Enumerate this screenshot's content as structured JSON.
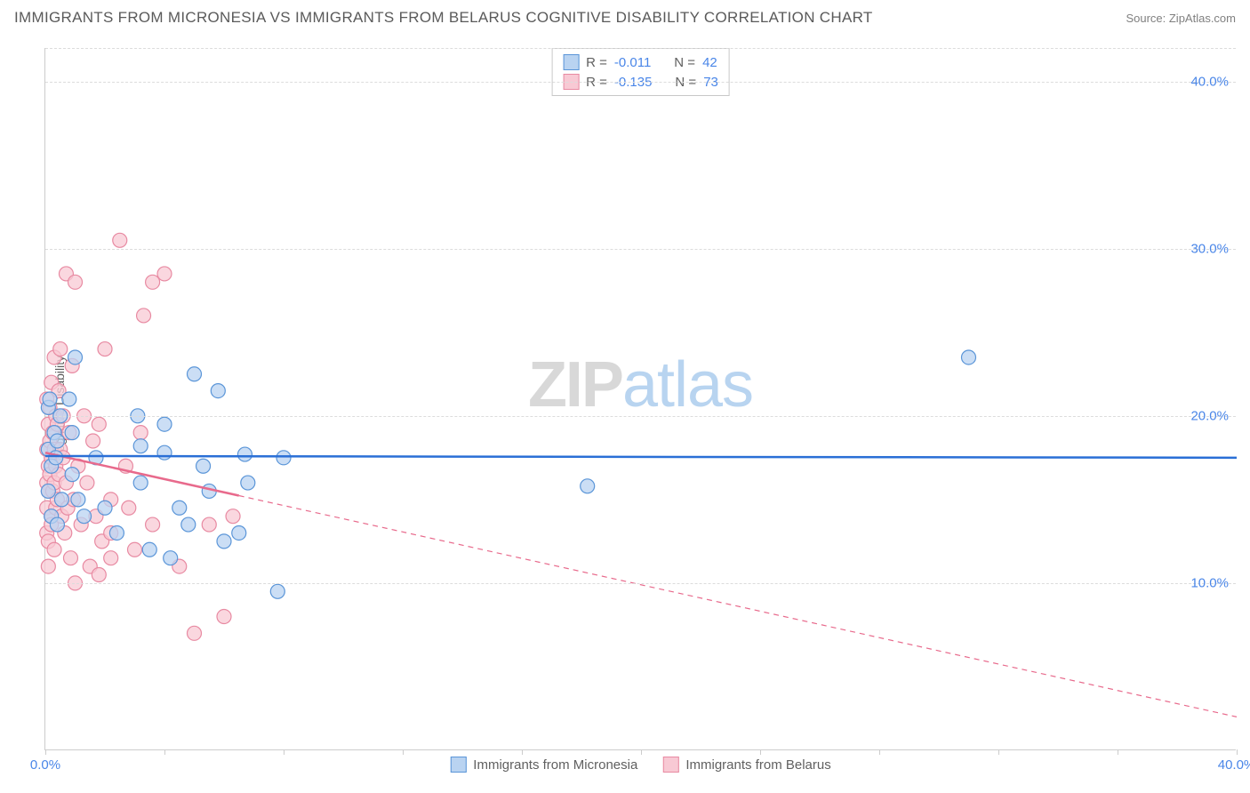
{
  "header": {
    "title": "IMMIGRANTS FROM MICRONESIA VS IMMIGRANTS FROM BELARUS COGNITIVE DISABILITY CORRELATION CHART",
    "source_prefix": "Source: ",
    "source": "ZipAtlas.com"
  },
  "chart": {
    "type": "scatter",
    "y_axis_label": "Cognitive Disability",
    "watermark_zip": "ZIP",
    "watermark_atlas": "atlas",
    "xlim": [
      0,
      40
    ],
    "ylim": [
      0,
      42
    ],
    "x_ticks_minor": [
      0,
      4,
      8,
      12,
      16,
      20,
      24,
      28,
      32,
      36,
      40
    ],
    "x_tick_labels": [
      {
        "v": 0,
        "label": "0.0%"
      },
      {
        "v": 40,
        "label": "40.0%"
      }
    ],
    "y_gridlines": [
      10,
      20,
      30,
      40,
      42
    ],
    "y_tick_labels": [
      {
        "v": 10,
        "label": "10.0%"
      },
      {
        "v": 20,
        "label": "20.0%"
      },
      {
        "v": 30,
        "label": "30.0%"
      },
      {
        "v": 40,
        "label": "40.0%"
      }
    ],
    "colors": {
      "series_a_fill": "#b9d3f1",
      "series_a_stroke": "#5a95d8",
      "series_b_fill": "#f8c9d4",
      "series_b_stroke": "#e88aa2",
      "trend_a": "#2a6fd6",
      "trend_b": "#e86a8c",
      "grid": "#dcdcdc",
      "axis": "#cccccc",
      "tick_text": "#4a86e8",
      "label_text": "#606060",
      "title_text": "#5a5a5a"
    },
    "marker_radius": 8,
    "marker_opacity": 0.75,
    "series_a": {
      "name": "Immigrants from Micronesia",
      "R": "-0.011",
      "N": "42",
      "trend": {
        "x1": 0,
        "y1": 17.6,
        "x2": 40,
        "y2": 17.5,
        "solid_until_x": 40
      },
      "points": [
        [
          0.1,
          20.5
        ],
        [
          0.1,
          18.0
        ],
        [
          0.1,
          15.5
        ],
        [
          0.15,
          21.0
        ],
        [
          0.2,
          17.0
        ],
        [
          0.2,
          14.0
        ],
        [
          0.3,
          19.0
        ],
        [
          0.35,
          17.5
        ],
        [
          0.4,
          18.5
        ],
        [
          0.4,
          13.5
        ],
        [
          0.5,
          20.0
        ],
        [
          0.55,
          15.0
        ],
        [
          0.8,
          21.0
        ],
        [
          0.9,
          19.0
        ],
        [
          0.9,
          16.5
        ],
        [
          1.0,
          23.5
        ],
        [
          1.1,
          15.0
        ],
        [
          1.3,
          14.0
        ],
        [
          1.7,
          17.5
        ],
        [
          2.0,
          14.5
        ],
        [
          2.4,
          13.0
        ],
        [
          3.1,
          20.0
        ],
        [
          3.2,
          18.2
        ],
        [
          3.2,
          16.0
        ],
        [
          3.5,
          12.0
        ],
        [
          4.0,
          19.5
        ],
        [
          4.0,
          17.8
        ],
        [
          4.2,
          11.5
        ],
        [
          4.5,
          14.5
        ],
        [
          4.8,
          13.5
        ],
        [
          5.0,
          22.5
        ],
        [
          5.3,
          17.0
        ],
        [
          5.5,
          15.5
        ],
        [
          5.8,
          21.5
        ],
        [
          6.0,
          12.5
        ],
        [
          6.5,
          13.0
        ],
        [
          6.7,
          17.7
        ],
        [
          6.8,
          16.0
        ],
        [
          7.8,
          9.5
        ],
        [
          8.0,
          17.5
        ],
        [
          18.2,
          15.8
        ],
        [
          31.0,
          23.5
        ]
      ]
    },
    "series_b": {
      "name": "Immigrants from Belarus",
      "R": "-0.135",
      "N": "73",
      "trend": {
        "x1": 0,
        "y1": 17.8,
        "x2": 40,
        "y2": 2.0,
        "solid_until_x": 6.5
      },
      "points": [
        [
          0.05,
          21.0
        ],
        [
          0.05,
          18.0
        ],
        [
          0.05,
          16.0
        ],
        [
          0.05,
          14.5
        ],
        [
          0.05,
          13.0
        ],
        [
          0.1,
          19.5
        ],
        [
          0.1,
          17.0
        ],
        [
          0.1,
          15.5
        ],
        [
          0.1,
          12.5
        ],
        [
          0.1,
          11.0
        ],
        [
          0.15,
          20.5
        ],
        [
          0.15,
          18.5
        ],
        [
          0.15,
          16.5
        ],
        [
          0.2,
          22.0
        ],
        [
          0.2,
          17.5
        ],
        [
          0.2,
          14.0
        ],
        [
          0.2,
          13.5
        ],
        [
          0.25,
          19.0
        ],
        [
          0.25,
          15.5
        ],
        [
          0.3,
          23.5
        ],
        [
          0.3,
          18.0
        ],
        [
          0.3,
          16.0
        ],
        [
          0.3,
          12.0
        ],
        [
          0.35,
          20.0
        ],
        [
          0.35,
          17.0
        ],
        [
          0.35,
          14.5
        ],
        [
          0.4,
          19.5
        ],
        [
          0.4,
          15.0
        ],
        [
          0.45,
          21.5
        ],
        [
          0.45,
          16.5
        ],
        [
          0.5,
          24.0
        ],
        [
          0.5,
          18.0
        ],
        [
          0.55,
          14.0
        ],
        [
          0.6,
          20.0
        ],
        [
          0.6,
          17.5
        ],
        [
          0.65,
          13.0
        ],
        [
          0.7,
          28.5
        ],
        [
          0.7,
          16.0
        ],
        [
          0.75,
          14.5
        ],
        [
          0.8,
          19.0
        ],
        [
          0.85,
          11.5
        ],
        [
          0.9,
          23.0
        ],
        [
          0.95,
          15.0
        ],
        [
          1.0,
          10.0
        ],
        [
          1.0,
          28.0
        ],
        [
          1.1,
          17.0
        ],
        [
          1.2,
          13.5
        ],
        [
          1.3,
          20.0
        ],
        [
          1.4,
          16.0
        ],
        [
          1.5,
          11.0
        ],
        [
          1.6,
          18.5
        ],
        [
          1.7,
          14.0
        ],
        [
          1.8,
          10.5
        ],
        [
          1.8,
          19.5
        ],
        [
          1.9,
          12.5
        ],
        [
          2.0,
          24.0
        ],
        [
          2.2,
          15.0
        ],
        [
          2.2,
          13.0
        ],
        [
          2.2,
          11.5
        ],
        [
          2.5,
          30.5
        ],
        [
          2.7,
          17.0
        ],
        [
          2.8,
          14.5
        ],
        [
          3.0,
          12.0
        ],
        [
          3.2,
          19.0
        ],
        [
          3.3,
          26.0
        ],
        [
          3.6,
          13.5
        ],
        [
          3.6,
          28.0
        ],
        [
          4.0,
          28.5
        ],
        [
          4.5,
          11.0
        ],
        [
          5.0,
          7.0
        ],
        [
          5.5,
          13.5
        ],
        [
          6.0,
          8.0
        ],
        [
          6.3,
          14.0
        ]
      ]
    }
  },
  "stats_box": {
    "rows": [
      {
        "swatch": "a",
        "r_label": "R =",
        "n_label": "N ="
      },
      {
        "swatch": "b",
        "r_label": "R =",
        "n_label": "N ="
      }
    ]
  }
}
